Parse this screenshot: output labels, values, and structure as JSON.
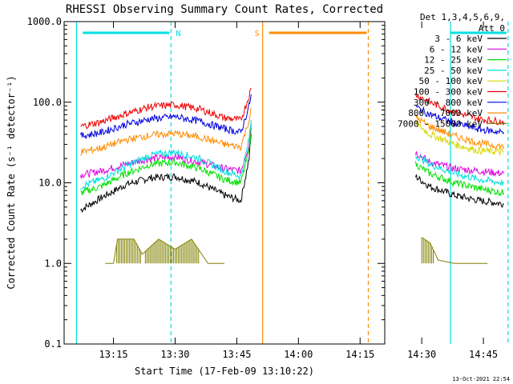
{
  "chart_data": {
    "type": "line",
    "title": "RHESSI Observing Summary Count Rates, Corrected",
    "xlabel": "Start Time (17-Feb-09 13:10:22)",
    "ylabel": "Corrected Count Rate (s⁻¹ detector⁻¹)",
    "yscale": "log",
    "ylim": [
      0.1,
      1000
    ],
    "xlim_min": [
      3.2,
      81.2
    ],
    "x_ticks": [
      {
        "t": 15,
        "label": "13:15"
      },
      {
        "t": 30,
        "label": "13:30"
      },
      {
        "t": 45,
        "label": "13:45"
      },
      {
        "t": 60,
        "label": "14:00"
      },
      {
        "t": 75,
        "label": "14:15"
      },
      {
        "t": 90,
        "label": "14:30"
      },
      {
        "t": 105,
        "label": "14:45"
      }
    ],
    "y_ticks": [
      {
        "v": 0.1,
        "label": "0.1"
      },
      {
        "v": 1,
        "label": "1.0"
      },
      {
        "v": 10,
        "label": "10.0"
      },
      {
        "v": 100,
        "label": "100.0"
      },
      {
        "v": 1000,
        "label": "1000.0"
      }
    ],
    "legend_header": [
      "Det 1,3,4,5,6,9,",
      "Att 0"
    ],
    "legend_position": "right",
    "series": [
      {
        "name": "3 - 6 keV",
        "color": "#000000",
        "segments": [
          [
            [
              7,
              4.6
            ],
            [
              12,
              6.5
            ],
            [
              18,
              9.5
            ],
            [
              24,
              11.5
            ],
            [
              30,
              12
            ],
            [
              36,
              10
            ],
            [
              42,
              7
            ],
            [
              46,
              6
            ],
            [
              48,
              20
            ],
            [
              48.5,
              40
            ]
          ],
          [
            [
              88.5,
              12
            ],
            [
              92,
              9
            ],
            [
              98,
              7
            ],
            [
              104,
              6
            ],
            [
              110,
              5.5
            ]
          ]
        ]
      },
      {
        "name": "6 - 12 keV",
        "color": "#e000e0",
        "segments": [
          [
            [
              7,
              12.5
            ],
            [
              12,
              14
            ],
            [
              18,
              17
            ],
            [
              24,
              20
            ],
            [
              30,
              21
            ],
            [
              36,
              18
            ],
            [
              42,
              15
            ],
            [
              46,
              14
            ],
            [
              48,
              30
            ],
            [
              48.5,
              55
            ]
          ],
          [
            [
              88.5,
              24
            ],
            [
              92,
              18
            ],
            [
              98,
              15
            ],
            [
              104,
              14
            ],
            [
              110,
              13
            ]
          ]
        ]
      },
      {
        "name": "12 - 25 keV",
        "color": "#00e000",
        "segments": [
          [
            [
              7,
              7.5
            ],
            [
              12,
              9
            ],
            [
              18,
              13
            ],
            [
              24,
              17
            ],
            [
              30,
              18
            ],
            [
              36,
              15
            ],
            [
              42,
              11
            ],
            [
              46,
              10
            ],
            [
              48,
              25
            ],
            [
              48.5,
              48
            ]
          ],
          [
            [
              88.5,
              17
            ],
            [
              92,
              13
            ],
            [
              98,
              10
            ],
            [
              104,
              8.5
            ],
            [
              110,
              7.5
            ]
          ]
        ]
      },
      {
        "name": "25 - 50 keV",
        "color": "#00e0e0",
        "segments": [
          [
            [
              7,
              9
            ],
            [
              12,
              11
            ],
            [
              18,
              16
            ],
            [
              24,
              22
            ],
            [
              30,
              24
            ],
            [
              36,
              20
            ],
            [
              42,
              14
            ],
            [
              46,
              12
            ],
            [
              48,
              35
            ],
            [
              48.5,
              60
            ]
          ],
          [
            [
              88.5,
              22
            ],
            [
              92,
              17
            ],
            [
              98,
              13
            ],
            [
              104,
              11
            ],
            [
              110,
              10
            ]
          ]
        ]
      },
      {
        "name": "50 - 100 keV",
        "color": "#d8d800",
        "segments": [
          [
            [
              88.5,
              55
            ],
            [
              92,
              40
            ],
            [
              98,
              30
            ],
            [
              104,
              25
            ],
            [
              110,
              24
            ]
          ]
        ]
      },
      {
        "name": "100 - 300 keV",
        "color": "#ee0000",
        "segments": [
          [
            [
              7,
              50
            ],
            [
              12,
              57
            ],
            [
              18,
              72
            ],
            [
              24,
              88
            ],
            [
              30,
              93
            ],
            [
              36,
              82
            ],
            [
              42,
              64
            ],
            [
              46,
              60
            ],
            [
              48,
              120
            ],
            [
              48.5,
              150
            ]
          ],
          [
            [
              88.5,
              125
            ],
            [
              92,
              100
            ],
            [
              98,
              75
            ],
            [
              104,
              62
            ],
            [
              110,
              57
            ]
          ]
        ]
      },
      {
        "name": "300 - 800 keV",
        "color": "#0000e0",
        "segments": [
          [
            [
              7,
              38
            ],
            [
              12,
              42
            ],
            [
              18,
              53
            ],
            [
              24,
              62
            ],
            [
              30,
              66
            ],
            [
              36,
              58
            ],
            [
              42,
              47
            ],
            [
              46,
              42
            ],
            [
              48,
              90
            ],
            [
              48.5,
              125
            ]
          ],
          [
            [
              88.5,
              88
            ],
            [
              92,
              70
            ],
            [
              98,
              55
            ],
            [
              104,
              46
            ],
            [
              110,
              42
            ]
          ]
        ]
      },
      {
        "name": "800 - 7000 keV",
        "color": "#ff8c00",
        "segments": [
          [
            [
              7,
              24
            ],
            [
              12,
              27
            ],
            [
              18,
              34
            ],
            [
              24,
              39
            ],
            [
              30,
              41
            ],
            [
              36,
              37
            ],
            [
              42,
              30
            ],
            [
              46,
              28
            ],
            [
              48,
              60
            ],
            [
              48.5,
              85
            ]
          ],
          [
            [
              88.5,
              65
            ],
            [
              92,
              50
            ],
            [
              98,
              38
            ],
            [
              104,
              31
            ],
            [
              110,
              28
            ]
          ]
        ]
      },
      {
        "name": "7000 - 15000 keV",
        "color": "#808000",
        "segments": [
          [
            [
              13,
              1
            ],
            [
              15,
              1
            ],
            [
              16,
              2
            ],
            [
              20,
              2
            ],
            [
              22,
              1.3
            ],
            [
              26,
              2
            ],
            [
              30,
              1.5
            ],
            [
              34,
              2
            ],
            [
              38,
              1
            ],
            [
              42,
              1
            ]
          ],
          [
            [
              90,
              2.1
            ],
            [
              92,
              1.8
            ],
            [
              94,
              1.1
            ],
            [
              98,
              1
            ],
            [
              106,
              1
            ]
          ]
        ]
      }
    ],
    "markers": [
      {
        "t1": 51.3,
        "t2": 77,
        "color": "#ff8c00",
        "label": "S"
      },
      {
        "t1": 6,
        "t2": 29,
        "color": "#00e0e0",
        "label": "N"
      },
      {
        "t1": 97,
        "t2": 111,
        "color": "#00e0e0",
        "label": ""
      }
    ],
    "grid": false
  },
  "footer": {
    "timestamp": "13-Oct-2021 22:54"
  }
}
